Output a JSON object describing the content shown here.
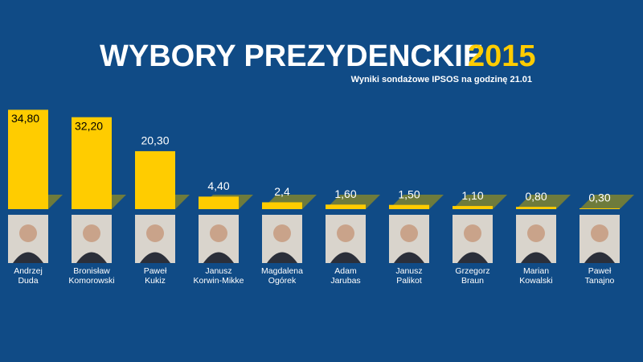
{
  "chart_data": {
    "type": "bar",
    "title": "WYBORY PREZYDENCKIE",
    "title_year": "2015",
    "subtitle": "Wyniki sondażowe IPSOS na godzinę 21.01",
    "categories": [
      "Andrzej Duda",
      "Bronisław Komorowski",
      "Paweł Kukiz",
      "Janusz Korwin-Mikke",
      "Magdalena Ogórek",
      "Adam Jarubas",
      "Janusz Palikot",
      "Grzegorz Braun",
      "Marian Kowalski",
      "Paweł Tanajno"
    ],
    "values": [
      34.8,
      32.2,
      20.3,
      4.4,
      2.4,
      1.6,
      1.5,
      1.1,
      0.8,
      0.3
    ],
    "value_labels": [
      "34,80",
      "32,20",
      "20,30",
      "4,40",
      "2,4",
      "1,60",
      "1,50",
      "1,10",
      "0,80",
      "0,30"
    ],
    "color": "#ffcc00"
  }
}
